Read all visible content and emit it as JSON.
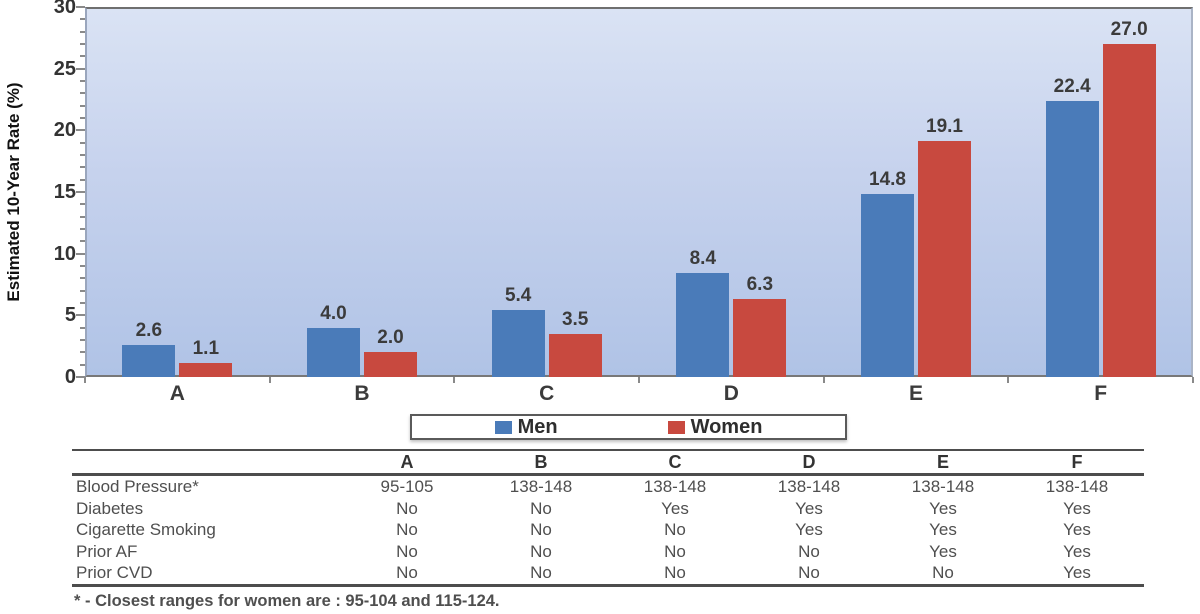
{
  "chart_data": {
    "type": "bar",
    "title": "",
    "categories": [
      "A",
      "B",
      "C",
      "D",
      "E",
      "F"
    ],
    "series": [
      {
        "name": "Men",
        "color": "#4a7bb9",
        "values": [
          2.6,
          4.0,
          5.4,
          8.4,
          14.8,
          22.4
        ]
      },
      {
        "name": "Women",
        "color": "#c8493f",
        "values": [
          1.1,
          2.0,
          3.5,
          6.3,
          19.1,
          27.0
        ]
      }
    ],
    "ylabel": "Estimated 10-Year Rate (%)",
    "xlabel": "",
    "ylim": [
      0,
      30
    ],
    "ytick_step": 5,
    "yminor_step": 1,
    "ytick_labels": [
      "0",
      "5",
      "10",
      "15",
      "20",
      "25",
      "30"
    ],
    "grid": false,
    "value_labels": true,
    "legend_position": "bottom"
  },
  "legend": {
    "items": [
      "Men",
      "Women"
    ]
  },
  "table": {
    "columns": [
      "A",
      "B",
      "C",
      "D",
      "E",
      "F"
    ],
    "rows": [
      {
        "label": "Blood Pressure*",
        "values": [
          "95-105",
          "138-148",
          "138-148",
          "138-148",
          "138-148",
          "138-148"
        ]
      },
      {
        "label": "Diabetes",
        "values": [
          "No",
          "No",
          "Yes",
          "Yes",
          "Yes",
          "Yes"
        ]
      },
      {
        "label": "Cigarette Smoking",
        "values": [
          "No",
          "No",
          "No",
          "Yes",
          "Yes",
          "Yes"
        ]
      },
      {
        "label": "Prior AF",
        "values": [
          "No",
          "No",
          "No",
          "No",
          "Yes",
          "Yes"
        ]
      },
      {
        "label": "Prior CVD",
        "values": [
          "No",
          "No",
          "No",
          "No",
          "No",
          "Yes"
        ]
      }
    ]
  },
  "footnote": "* - Closest ranges for women are : 95-104 and 115-124."
}
